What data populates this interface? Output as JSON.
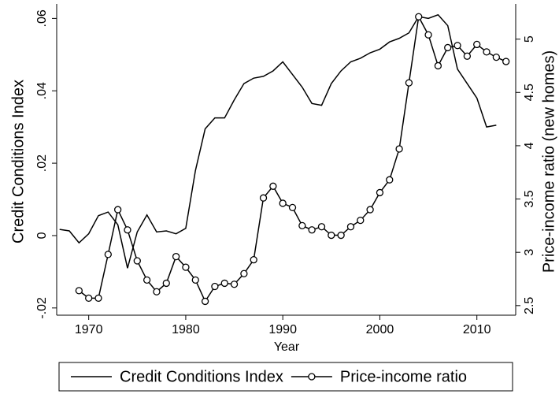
{
  "chart_data": {
    "type": "line",
    "y_label": "Credit Conditions Index",
    "y2_label": "Price-income ratio (new homes)",
    "x_label": "Year",
    "x": [
      1967,
      1968,
      1969,
      1970,
      1971,
      1972,
      1973,
      1974,
      1975,
      1976,
      1977,
      1978,
      1979,
      1980,
      1981,
      1982,
      1983,
      1984,
      1985,
      1986,
      1987,
      1988,
      1989,
      1990,
      1991,
      1992,
      1993,
      1994,
      1995,
      1996,
      1997,
      1998,
      1999,
      2000,
      2001,
      2002,
      2003,
      2004,
      2005,
      2006,
      2007,
      2008,
      2009,
      2010,
      2011,
      2012,
      2013
    ],
    "series": [
      {
        "name": "Credit Conditions Index",
        "color": "#000000",
        "marker": false,
        "values": [
          0.0017,
          0.0013,
          -0.002,
          0.0005,
          0.0055,
          0.0065,
          0.003,
          -0.009,
          0.001,
          0.0057,
          0.001,
          0.0013,
          0.0005,
          0.002,
          0.018,
          0.0295,
          0.0325,
          0.0325,
          0.0375,
          0.042,
          0.0435,
          0.044,
          0.0455,
          0.048,
          0.0445,
          0.041,
          0.0365,
          0.036,
          0.042,
          0.0455,
          0.048,
          0.049,
          0.0505,
          0.0515,
          0.0535,
          0.0545,
          0.056,
          0.0605,
          0.06,
          0.061,
          0.058,
          0.046,
          0.042,
          0.038,
          0.03,
          0.0305,
          null
        ]
      },
      {
        "name": "Price-income ratio",
        "color": "#000000",
        "marker": true,
        "axis": "y2",
        "values": [
          null,
          null,
          2.64,
          2.57,
          2.57,
          2.98,
          3.4,
          3.21,
          2.92,
          2.74,
          2.63,
          2.71,
          2.96,
          2.86,
          2.74,
          2.54,
          2.68,
          2.71,
          2.7,
          2.8,
          2.93,
          3.51,
          3.62,
          3.46,
          3.42,
          3.25,
          3.21,
          3.24,
          3.16,
          3.16,
          3.24,
          3.3,
          3.4,
          3.56,
          3.68,
          3.97,
          4.59,
          5.21,
          5.04,
          4.75,
          4.92,
          4.94,
          4.84,
          4.95,
          4.88,
          4.83,
          4.79
        ]
      }
    ],
    "xlim": [
      1966.7,
      2014.0
    ],
    "xticks": [
      1970,
      1980,
      1990,
      2000,
      2010
    ],
    "ylim": [
      -0.022,
      0.064
    ],
    "yticks": [
      {
        "value": -0.02,
        "label": "-.02"
      },
      0,
      {
        "value": 0.02,
        "label": ".02"
      },
      {
        "value": 0.04,
        "label": ".04"
      },
      {
        "value": 0.06,
        "label": ".06"
      }
    ],
    "y2lim": [
      2.41,
      5.33
    ],
    "y2ticks": [
      2.5,
      3,
      3.5,
      4,
      4.5,
      5
    ],
    "legend": "bottom"
  }
}
